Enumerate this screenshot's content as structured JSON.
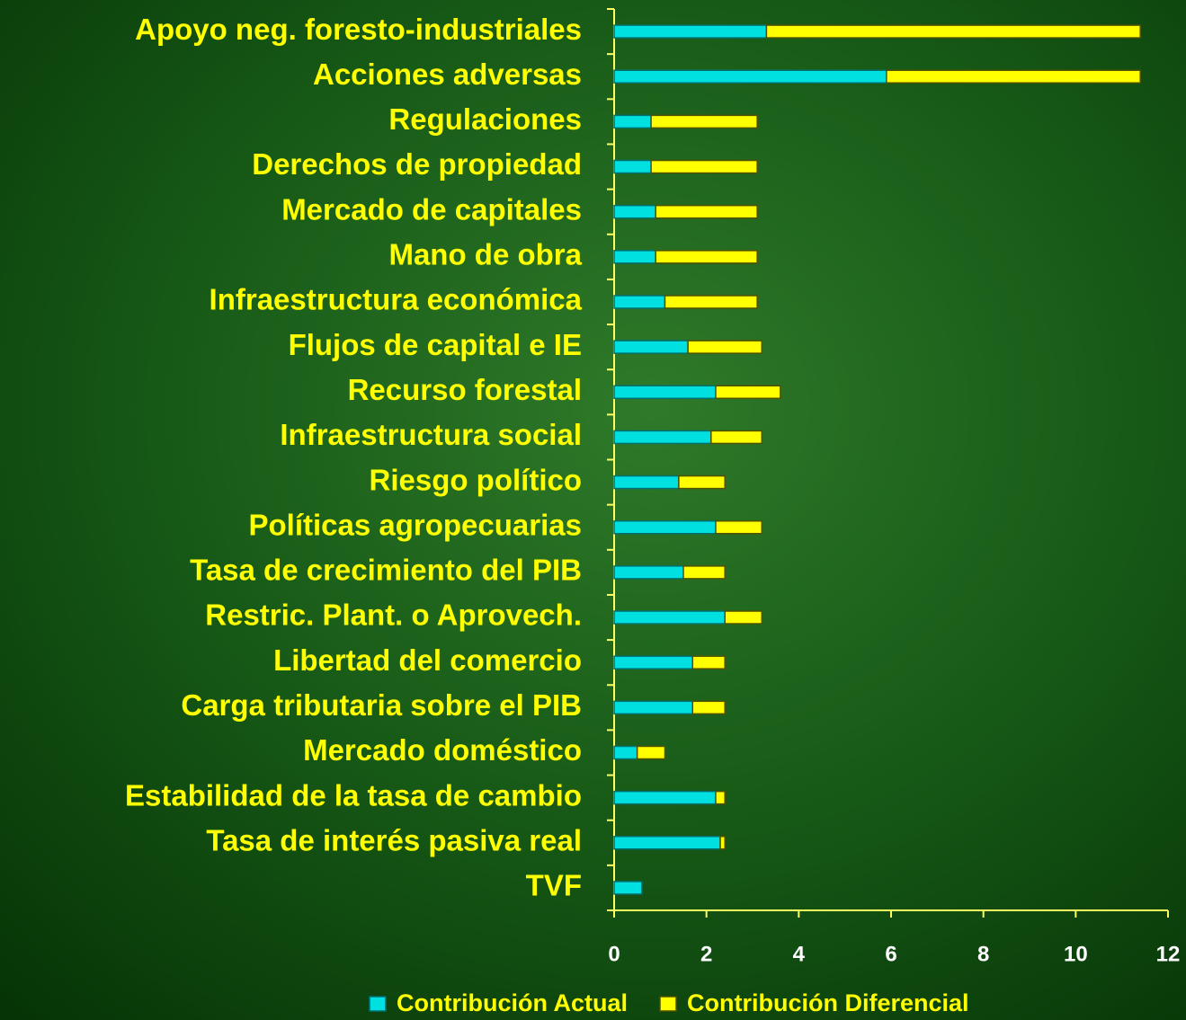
{
  "chart_data": {
    "type": "stacked-bar-horizontal",
    "categories": [
      "Apoyo neg. foresto-industriales",
      "Acciones adversas",
      "Regulaciones",
      "Derechos de propiedad",
      "Mercado de capitales",
      "Mano de obra",
      "Infraestructura económica",
      "Flujos de capital e IE",
      "Recurso forestal",
      "Infraestructura social",
      "Riesgo político",
      "Políticas agropecuarias",
      "Tasa de crecimiento del PIB",
      "Restric.  Plant. o Aprovech.",
      "Libertad del comercio",
      "Carga tributaria sobre el PIB",
      "Mercado doméstico",
      "Estabilidad de la tasa de cambio",
      "Tasa de interés pasiva real",
      "TVF"
    ],
    "series": [
      {
        "name": "Contribución Actual",
        "color": "#00e0e0",
        "values": [
          3.3,
          5.9,
          0.8,
          0.8,
          0.9,
          0.9,
          1.1,
          1.6,
          2.2,
          2.1,
          1.4,
          2.2,
          1.5,
          2.4,
          1.7,
          1.7,
          0.5,
          2.2,
          2.3,
          0.6
        ]
      },
      {
        "name": "Contribución Diferencial",
        "color": "#ffff00",
        "values": [
          8.1,
          5.5,
          2.3,
          2.3,
          2.2,
          2.2,
          2.0,
          1.6,
          1.4,
          1.1,
          1.0,
          1.0,
          0.9,
          0.8,
          0.7,
          0.7,
          0.6,
          0.2,
          0.1,
          0
        ]
      }
    ],
    "xlim": [
      0,
      12
    ],
    "xticks": [
      0,
      2,
      4,
      6,
      8,
      10,
      12
    ],
    "legend": "bottom"
  }
}
